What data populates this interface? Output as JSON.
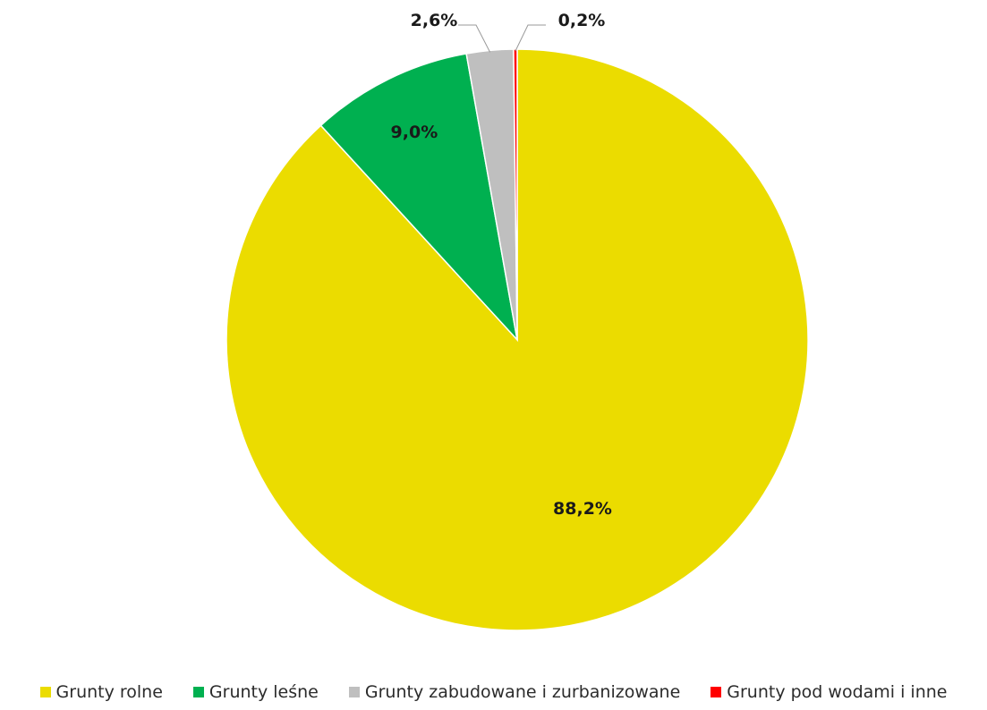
{
  "chart_data": {
    "type": "pie",
    "title": "",
    "categories": [
      "Grunty rolne",
      "Grunty leśne",
      "Grunty zabudowane i zurbanizowane",
      "Grunty pod wodami i inne"
    ],
    "values": [
      88.2,
      9.0,
      2.6,
      0.2
    ],
    "data_labels": [
      "88,2%",
      "9,0%",
      "2,6%",
      "0,2%"
    ],
    "colors": [
      "#EBDC00",
      "#00B050",
      "#BFBFBF",
      "#FF0000"
    ],
    "start_angle_deg": 0,
    "direction": "clockwise",
    "legend_position": "bottom"
  }
}
